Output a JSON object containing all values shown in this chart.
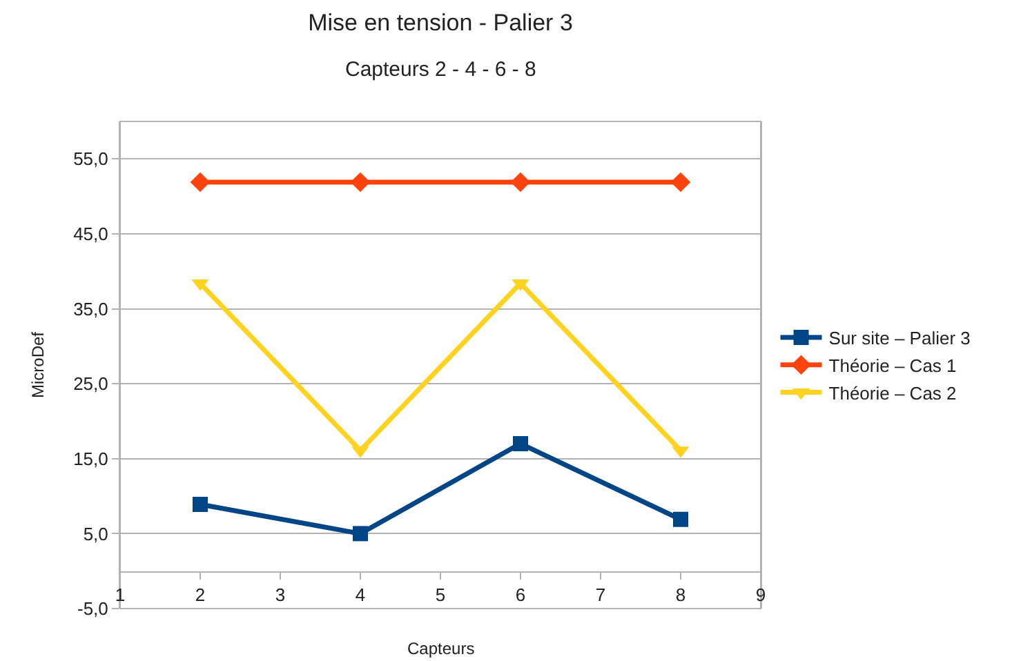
{
  "chart_data": {
    "type": "line",
    "title": "Mise en tension - Palier 3",
    "subtitle": "Capteurs 2 - 4 - 6 - 8",
    "xlabel": "Capteurs",
    "ylabel": "MicroDef",
    "x": [
      2,
      4,
      6,
      8
    ],
    "series": [
      {
        "name": "Sur site – Palier 3",
        "color": "#004586",
        "marker": "square",
        "values": [
          8.9,
          5.0,
          17.0,
          6.9
        ]
      },
      {
        "name": "Théorie – Cas 1",
        "color": "#ff420e",
        "marker": "diamond",
        "values": [
          51.9,
          51.9,
          51.9,
          51.9
        ]
      },
      {
        "name": "Théorie – Cas 2",
        "color": "#ffd320",
        "marker": "triangle",
        "values": [
          38.4,
          16.1,
          38.4,
          16.1
        ]
      }
    ],
    "xlim": [
      1,
      9
    ],
    "xticks": [
      1,
      2,
      3,
      4,
      5,
      6,
      7,
      8,
      9
    ],
    "ylim": [
      -5,
      60
    ],
    "yticks": [
      {
        "value": -5,
        "label": "-5,0"
      },
      {
        "value": 5,
        "label": "5,0"
      },
      {
        "value": 15,
        "label": "15,0"
      },
      {
        "value": 25,
        "label": "25,0"
      },
      {
        "value": 35,
        "label": "35,0"
      },
      {
        "value": 45,
        "label": "45,0"
      },
      {
        "value": 55,
        "label": "55,0"
      }
    ],
    "grid": "y",
    "legend": "right",
    "line_style": "solid"
  }
}
